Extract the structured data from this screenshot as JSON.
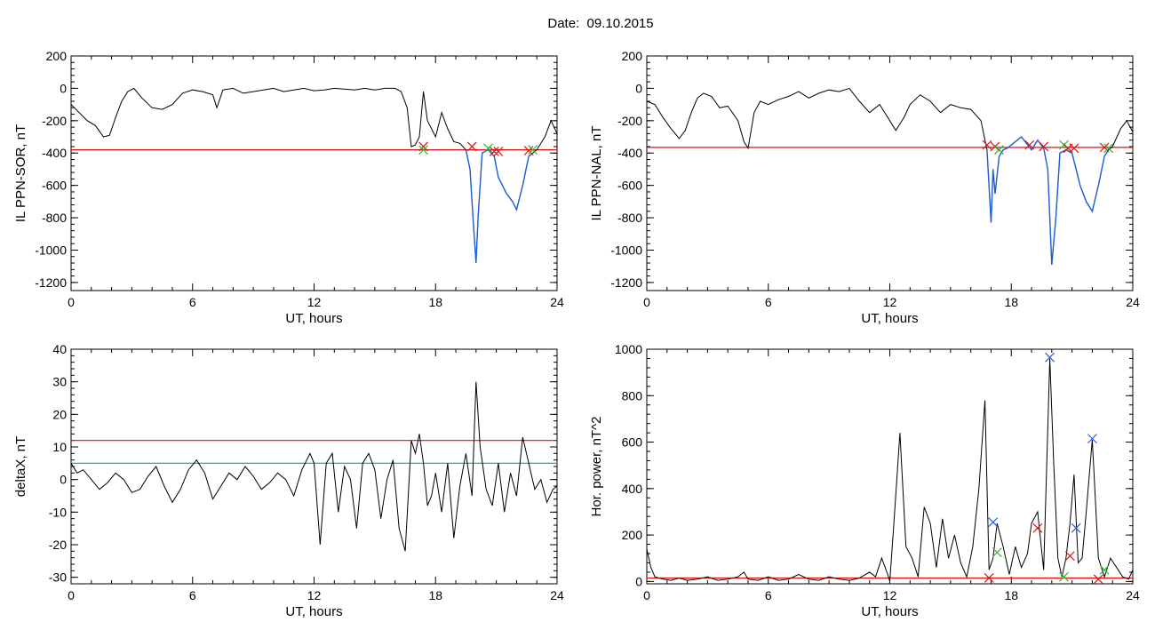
{
  "title": "Date:  09.10.2015",
  "colors": {
    "data": "#000000",
    "threshold": "#e01010",
    "threshold2": "#1f8fb0",
    "segment": "#1f5fd8",
    "mark_red": "#e01010",
    "mark_green": "#2db82d",
    "mark_blue": "#2060e0"
  },
  "chart_data": [
    {
      "type": "line",
      "xlabel": "UT, hours",
      "ylabel": "IL PPN-SOR, nT",
      "xlim": [
        0,
        24
      ],
      "ylim": [
        -1250,
        200
      ],
      "xticks": [
        "0",
        "6",
        "12",
        "18",
        "24"
      ],
      "yticks": [
        "200",
        "0",
        "-200",
        "-400",
        "-600",
        "-800",
        "-1000",
        "-1200"
      ],
      "threshold": -380,
      "series": [
        {
          "x": [
            0,
            0.4,
            0.8,
            1.2,
            1.6,
            1.9,
            2.2,
            2.5,
            2.8,
            3.1,
            3.5,
            4,
            4.5,
            5,
            5.5,
            6,
            6.5,
            7,
            7.2,
            7.5,
            8,
            8.5,
            9,
            9.5,
            10,
            10.5,
            11,
            11.5,
            12,
            12.5,
            13,
            13.5,
            14,
            14.5,
            15,
            15.5,
            16,
            16.3,
            16.6,
            16.8,
            17,
            17.2,
            17.4,
            17.6,
            18,
            18.3,
            18.6,
            18.9,
            19.2,
            19.5,
            19.7,
            19.85,
            20,
            20.1,
            20.3,
            20.6,
            20.9,
            21.1,
            21.3,
            21.5,
            21.8,
            22,
            22.3,
            22.6,
            22.8,
            23,
            23.4,
            23.7,
            24
          ],
          "y": [
            -100,
            -150,
            -200,
            -230,
            -300,
            -290,
            -180,
            -80,
            -20,
            0,
            -60,
            -120,
            -130,
            -100,
            -30,
            -10,
            -20,
            -40,
            -120,
            -10,
            0,
            -30,
            -20,
            -10,
            0,
            -20,
            -10,
            0,
            -15,
            -10,
            0,
            -5,
            -10,
            0,
            -10,
            0,
            0,
            -20,
            -120,
            -360,
            -350,
            -300,
            -20,
            -200,
            -300,
            -150,
            -250,
            -330,
            -340,
            -380,
            -500,
            -800,
            -1080,
            -800,
            -400,
            -380,
            -420,
            -550,
            -600,
            -650,
            -700,
            -750,
            -600,
            -420,
            -400,
            -380,
            -300,
            -200,
            -280
          ]
        }
      ],
      "segment": {
        "x": [
          19.5,
          19.7,
          19.85,
          20,
          20.1,
          20.3,
          20.6,
          20.9,
          21.1,
          21.3,
          21.5,
          21.8,
          22,
          22.3,
          22.6,
          22.8
        ],
        "y": [
          -380,
          -500,
          -800,
          -1080,
          -800,
          -400,
          -380,
          -420,
          -550,
          -600,
          -650,
          -700,
          -750,
          -600,
          -420,
          -400
        ]
      },
      "markers": [
        {
          "x": 17.4,
          "y": -360,
          "color": "red"
        },
        {
          "x": 17.4,
          "y": -380,
          "color": "green"
        },
        {
          "x": 19.8,
          "y": -360,
          "color": "red"
        },
        {
          "x": 20.6,
          "y": -370,
          "color": "green"
        },
        {
          "x": 20.9,
          "y": -390,
          "color": "red"
        },
        {
          "x": 21.1,
          "y": -390,
          "color": "red"
        },
        {
          "x": 22.6,
          "y": -385,
          "color": "red"
        },
        {
          "x": 22.8,
          "y": -380,
          "color": "green"
        }
      ]
    },
    {
      "type": "line",
      "xlabel": "UT, hours",
      "ylabel": "IL PPN-NAL, nT",
      "xlim": [
        0,
        24
      ],
      "ylim": [
        -1250,
        200
      ],
      "xticks": [
        "0",
        "6",
        "12",
        "18",
        "24"
      ],
      "yticks": [
        "200",
        "0",
        "-200",
        "-400",
        "-600",
        "-800",
        "-1000",
        "-1200"
      ],
      "threshold": -365,
      "series": [
        {
          "x": [
            0,
            0.4,
            0.8,
            1.2,
            1.6,
            1.9,
            2.2,
            2.5,
            2.8,
            3.2,
            3.6,
            4,
            4.5,
            4.8,
            5,
            5.3,
            5.6,
            6,
            6.5,
            7,
            7.5,
            8,
            8.5,
            9,
            9.5,
            10,
            10.5,
            11,
            11.5,
            12,
            12.3,
            12.7,
            13,
            13.5,
            14,
            14.5,
            15,
            15.5,
            16,
            16.5,
            16.8,
            17,
            17.1,
            17.2,
            17.4,
            17.6,
            17.8,
            18,
            18.5,
            19,
            19.3,
            19.6,
            19.8,
            20,
            20.2,
            20.4,
            20.7,
            21,
            21.2,
            21.4,
            21.7,
            22,
            22.3,
            22.6,
            22.8,
            23,
            23.4,
            23.7,
            24
          ],
          "y": [
            -80,
            -100,
            -180,
            -250,
            -310,
            -260,
            -150,
            -60,
            -30,
            -50,
            -120,
            -110,
            -200,
            -330,
            -370,
            -150,
            -80,
            -100,
            -70,
            -50,
            -20,
            -60,
            -30,
            -10,
            -20,
            0,
            -80,
            -150,
            -100,
            -200,
            -260,
            -180,
            -100,
            -40,
            -80,
            -150,
            -100,
            -120,
            -130,
            -200,
            -380,
            -830,
            -500,
            -650,
            -420,
            -380,
            -370,
            -350,
            -300,
            -380,
            -320,
            -370,
            -500,
            -1090,
            -800,
            -400,
            -380,
            -400,
            -500,
            -600,
            -700,
            -760,
            -600,
            -420,
            -380,
            -360,
            -250,
            -200,
            -270
          ]
        }
      ],
      "segment": {
        "x": [
          16.8,
          17,
          17.1,
          17.2,
          17.4,
          17.6,
          17.8,
          18,
          18.5,
          19,
          19.3,
          19.6,
          19.8,
          20,
          20.2,
          20.4,
          20.7,
          21,
          21.2,
          21.4,
          21.7,
          22,
          22.3,
          22.6,
          22.8
        ],
        "y": [
          -380,
          -830,
          -500,
          -650,
          -420,
          -380,
          -370,
          -350,
          -300,
          -380,
          -320,
          -370,
          -500,
          -1090,
          -800,
          -400,
          -380,
          -400,
          -500,
          -600,
          -700,
          -760,
          -600,
          -420,
          -380
        ]
      },
      "markers": [
        {
          "x": 16.8,
          "y": -350,
          "color": "red"
        },
        {
          "x": 17.2,
          "y": -360,
          "color": "red"
        },
        {
          "x": 17.4,
          "y": -380,
          "color": "green"
        },
        {
          "x": 18.9,
          "y": -350,
          "color": "red"
        },
        {
          "x": 19.6,
          "y": -360,
          "color": "red"
        },
        {
          "x": 20.6,
          "y": -350,
          "color": "green"
        },
        {
          "x": 20.8,
          "y": -370,
          "color": "red"
        },
        {
          "x": 21.1,
          "y": -370,
          "color": "red"
        },
        {
          "x": 22.6,
          "y": -365,
          "color": "red"
        },
        {
          "x": 22.8,
          "y": -370,
          "color": "green"
        }
      ]
    },
    {
      "type": "line",
      "xlabel": "UT, hours",
      "ylabel": "deltaX, nT",
      "xlim": [
        0,
        24
      ],
      "ylim": [
        -32,
        40
      ],
      "xticks": [
        "0",
        "6",
        "12",
        "18",
        "24"
      ],
      "yticks": [
        "40",
        "30",
        "20",
        "10",
        "0",
        "-10",
        "-20",
        "-30"
      ],
      "threshold": 12,
      "threshold2": 5,
      "series": [
        {
          "x": [
            0,
            0.3,
            0.6,
            1,
            1.4,
            1.8,
            2.2,
            2.6,
            3,
            3.4,
            3.8,
            4.2,
            4.6,
            5,
            5.4,
            5.8,
            6.2,
            6.6,
            7,
            7.4,
            7.8,
            8.2,
            8.6,
            9,
            9.4,
            9.8,
            10.2,
            10.6,
            11,
            11.4,
            11.8,
            12,
            12.3,
            12.6,
            12.9,
            13.2,
            13.5,
            13.8,
            14.1,
            14.4,
            14.7,
            15,
            15.3,
            15.6,
            15.9,
            16.2,
            16.5,
            16.8,
            17,
            17.2,
            17.4,
            17.6,
            17.8,
            18,
            18.3,
            18.6,
            18.9,
            19.2,
            19.5,
            19.8,
            20,
            20.2,
            20.5,
            20.8,
            21.1,
            21.4,
            21.7,
            22,
            22.3,
            22.6,
            22.9,
            23.2,
            23.5,
            23.8,
            24
          ],
          "y": [
            5,
            2,
            3,
            0,
            -3,
            -1,
            2,
            0,
            -4,
            -3,
            1,
            4,
            -2,
            -7,
            -3,
            3,
            6,
            2,
            -6,
            -2,
            2,
            0,
            4,
            1,
            -3,
            -1,
            2,
            0,
            -5,
            3,
            8,
            5,
            -20,
            5,
            8,
            -10,
            4,
            0,
            -15,
            5,
            8,
            3,
            -12,
            0,
            6,
            -15,
            -22,
            12,
            8,
            14,
            5,
            -8,
            -5,
            2,
            -10,
            5,
            -18,
            -2,
            8,
            -5,
            30,
            10,
            -3,
            -8,
            5,
            -10,
            2,
            -5,
            13,
            5,
            -3,
            0,
            -7,
            -3,
            -2
          ]
        }
      ],
      "markers": []
    },
    {
      "type": "line",
      "xlabel": "UT, hours",
      "ylabel": "Hor. power, nT^2",
      "xlim": [
        0,
        24
      ],
      "ylim": [
        -10,
        1000
      ],
      "xticks": [
        "0",
        "6",
        "12",
        "18",
        "24"
      ],
      "yticks": [
        "1000",
        "800",
        "600",
        "400",
        "200",
        "0"
      ],
      "threshold": 15,
      "series": [
        {
          "x": [
            0,
            0.2,
            0.4,
            0.8,
            1.2,
            1.6,
            2,
            2.5,
            3,
            3.5,
            4,
            4.5,
            4.8,
            5,
            5.5,
            6,
            6.5,
            7,
            7.5,
            8,
            8.5,
            9,
            9.5,
            10,
            10.5,
            11,
            11.3,
            11.6,
            11.9,
            12,
            12.2,
            12.5,
            12.8,
            13.1,
            13.4,
            13.7,
            14,
            14.3,
            14.6,
            14.9,
            15.2,
            15.5,
            15.8,
            16.1,
            16.4,
            16.7,
            16.9,
            17.1,
            17.3,
            17.6,
            17.9,
            18.2,
            18.5,
            18.8,
            19,
            19.3,
            19.6,
            19.9,
            20.1,
            20.3,
            20.5,
            20.7,
            20.9,
            21.1,
            21.3,
            21.5,
            21.7,
            22,
            22.3,
            22.6,
            22.9,
            23.2,
            23.5,
            23.8,
            24
          ],
          "y": [
            140,
            60,
            20,
            10,
            5,
            15,
            5,
            10,
            20,
            5,
            10,
            20,
            40,
            10,
            5,
            20,
            5,
            10,
            30,
            10,
            5,
            20,
            10,
            5,
            15,
            40,
            20,
            100,
            30,
            0,
            250,
            640,
            150,
            100,
            20,
            320,
            250,
            60,
            270,
            100,
            200,
            80,
            20,
            150,
            400,
            780,
            50,
            100,
            250,
            150,
            30,
            150,
            60,
            120,
            250,
            300,
            50,
            960,
            500,
            100,
            20,
            100,
            250,
            460,
            80,
            100,
            300,
            610,
            100,
            20,
            100,
            60,
            20,
            10,
            50
          ]
        }
      ],
      "markers": [
        {
          "x": 17.1,
          "y": 255,
          "color": "blue"
        },
        {
          "x": 17.3,
          "y": 125,
          "color": "green"
        },
        {
          "x": 16.9,
          "y": 15,
          "color": "red"
        },
        {
          "x": 19.3,
          "y": 230,
          "color": "red"
        },
        {
          "x": 19.9,
          "y": 965,
          "color": "blue"
        },
        {
          "x": 20.6,
          "y": 20,
          "color": "green"
        },
        {
          "x": 20.9,
          "y": 110,
          "color": "red"
        },
        {
          "x": 21.2,
          "y": 230,
          "color": "blue"
        },
        {
          "x": 22.0,
          "y": 615,
          "color": "blue"
        },
        {
          "x": 22.3,
          "y": 10,
          "color": "red"
        },
        {
          "x": 22.6,
          "y": 50,
          "color": "green"
        }
      ]
    }
  ]
}
